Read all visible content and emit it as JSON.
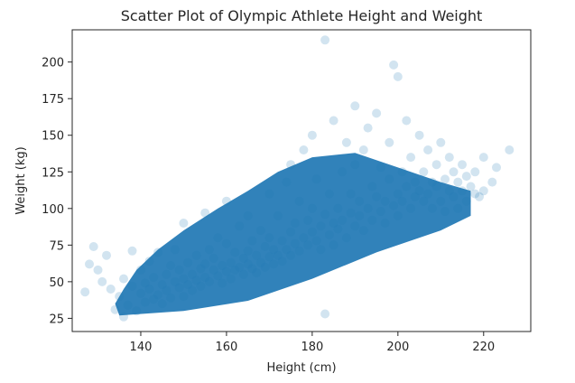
{
  "chart_data": {
    "type": "scatter",
    "title": "Scatter Plot of Olympic Athlete Height and Weight",
    "xlabel": "Height (cm)",
    "ylabel": "Weight (kg)",
    "xlim": [
      124,
      231
    ],
    "ylim": [
      16,
      222
    ],
    "xticks": [
      140,
      160,
      180,
      200,
      220
    ],
    "yticks": [
      25,
      50,
      75,
      100,
      125,
      150,
      175,
      200
    ],
    "grid": false,
    "legend": "none",
    "marker_color": "#1f77b4",
    "marker_alpha": 0.2,
    "series": [
      {
        "points": [
          [
            127,
            43
          ],
          [
            128,
            62
          ],
          [
            129,
            74
          ],
          [
            130,
            58
          ],
          [
            131,
            50
          ],
          [
            132,
            68
          ],
          [
            133,
            45
          ],
          [
            134,
            31
          ],
          [
            135,
            40
          ],
          [
            136,
            26
          ],
          [
            136,
            52
          ],
          [
            137,
            34
          ],
          [
            138,
            47
          ],
          [
            138,
            71
          ],
          [
            139,
            30
          ],
          [
            140,
            42
          ],
          [
            140,
            58
          ],
          [
            141,
            36
          ],
          [
            141,
            49
          ],
          [
            142,
            64
          ],
          [
            142,
            45
          ],
          [
            143,
            38
          ],
          [
            143,
            53
          ],
          [
            144,
            41
          ],
          [
            144,
            70
          ],
          [
            145,
            48
          ],
          [
            145,
            35
          ],
          [
            146,
            55
          ],
          [
            146,
            44
          ],
          [
            147,
            61
          ],
          [
            147,
            39
          ],
          [
            148,
            50
          ],
          [
            148,
            72
          ],
          [
            149,
            46
          ],
          [
            149,
            58
          ],
          [
            150,
            52
          ],
          [
            150,
            40
          ],
          [
            150,
            90
          ],
          [
            151,
            63
          ],
          [
            151,
            48
          ],
          [
            152,
            55
          ],
          [
            152,
            44
          ],
          [
            153,
            68
          ],
          [
            153,
            51
          ],
          [
            154,
            59
          ],
          [
            154,
            47
          ],
          [
            155,
            97
          ],
          [
            155,
            62
          ],
          [
            155,
            53
          ],
          [
            156,
            72
          ],
          [
            156,
            50
          ],
          [
            157,
            58
          ],
          [
            157,
            66
          ],
          [
            158,
            54
          ],
          [
            158,
            80
          ],
          [
            159,
            61
          ],
          [
            159,
            49
          ],
          [
            160,
            76
          ],
          [
            160,
            57
          ],
          [
            160,
            105
          ],
          [
            161,
            63
          ],
          [
            161,
            52
          ],
          [
            162,
            70
          ],
          [
            162,
            58
          ],
          [
            163,
            88
          ],
          [
            163,
            60
          ],
          [
            164,
            66
          ],
          [
            164,
            55
          ],
          [
            165,
            95
          ],
          [
            165,
            62
          ],
          [
            165,
            71
          ],
          [
            166,
            59
          ],
          [
            166,
            78
          ],
          [
            167,
            68
          ],
          [
            167,
            56
          ],
          [
            168,
            85
          ],
          [
            168,
            63
          ],
          [
            169,
            74
          ],
          [
            169,
            60
          ],
          [
            170,
            110
          ],
          [
            170,
            67
          ],
          [
            170,
            80
          ],
          [
            171,
            72
          ],
          [
            171,
            62
          ],
          [
            172,
            95
          ],
          [
            172,
            68
          ],
          [
            173,
            78
          ],
          [
            173,
            64
          ],
          [
            174,
            118
          ],
          [
            174,
            72
          ],
          [
            175,
            84
          ],
          [
            175,
            68
          ],
          [
            175,
            130
          ],
          [
            176,
            76
          ],
          [
            176,
            90
          ],
          [
            177,
            71
          ],
          [
            177,
            105
          ],
          [
            178,
            80
          ],
          [
            178,
            140
          ],
          [
            179,
            75
          ],
          [
            179,
            92
          ],
          [
            180,
            84
          ],
          [
            180,
            100
          ],
          [
            180,
            150
          ],
          [
            181,
            78
          ],
          [
            181,
            120
          ],
          [
            182,
            88
          ],
          [
            182,
            72
          ],
          [
            183,
            215
          ],
          [
            183,
            28
          ],
          [
            183,
            96
          ],
          [
            184,
            82
          ],
          [
            184,
            110
          ],
          [
            185,
            90
          ],
          [
            185,
            160
          ],
          [
            185,
            75
          ],
          [
            186,
            100
          ],
          [
            186,
            86
          ],
          [
            187,
            125
          ],
          [
            187,
            92
          ],
          [
            188,
            80
          ],
          [
            188,
            145
          ],
          [
            189,
            97
          ],
          [
            189,
            110
          ],
          [
            190,
            88
          ],
          [
            190,
            170
          ],
          [
            190,
            130
          ],
          [
            191,
            95
          ],
          [
            191,
            105
          ],
          [
            192,
            140
          ],
          [
            192,
            85
          ],
          [
            193,
            100
          ],
          [
            193,
            155
          ],
          [
            194,
            92
          ],
          [
            194,
            115
          ],
          [
            195,
            108
          ],
          [
            195,
            165
          ],
          [
            196,
            98
          ],
          [
            196,
            128
          ],
          [
            197,
            105
          ],
          [
            197,
            90
          ],
          [
            198,
            120
          ],
          [
            198,
            145
          ],
          [
            199,
            102
          ],
          [
            199,
            198
          ],
          [
            200,
            110
          ],
          [
            200,
            190
          ],
          [
            200,
            95
          ],
          [
            201,
            125
          ],
          [
            201,
            105
          ],
          [
            202,
            115
          ],
          [
            202,
            160
          ],
          [
            203,
            100
          ],
          [
            203,
            135
          ],
          [
            204,
            118
          ],
          [
            204,
            108
          ],
          [
            205,
            150
          ],
          [
            205,
            112
          ],
          [
            206,
            105
          ],
          [
            206,
            125
          ],
          [
            207,
            140
          ],
          [
            207,
            110
          ],
          [
            208,
            118
          ],
          [
            208,
            100
          ],
          [
            209,
            130
          ],
          [
            209,
            115
          ],
          [
            210,
            105
          ],
          [
            210,
            145
          ],
          [
            211,
            120
          ],
          [
            211,
            98
          ],
          [
            212,
            112
          ],
          [
            212,
            135
          ],
          [
            213,
            108
          ],
          [
            213,
            125
          ],
          [
            214,
            118
          ],
          [
            214,
            100
          ],
          [
            215,
            130
          ],
          [
            215,
            112
          ],
          [
            216,
            105
          ],
          [
            216,
            122
          ],
          [
            217,
            115
          ],
          [
            218,
            110
          ],
          [
            218,
            125
          ],
          [
            219,
            108
          ],
          [
            220,
            112
          ],
          [
            220,
            135
          ],
          [
            222,
            118
          ],
          [
            223,
            128
          ],
          [
            226,
            140
          ]
        ]
      }
    ]
  }
}
